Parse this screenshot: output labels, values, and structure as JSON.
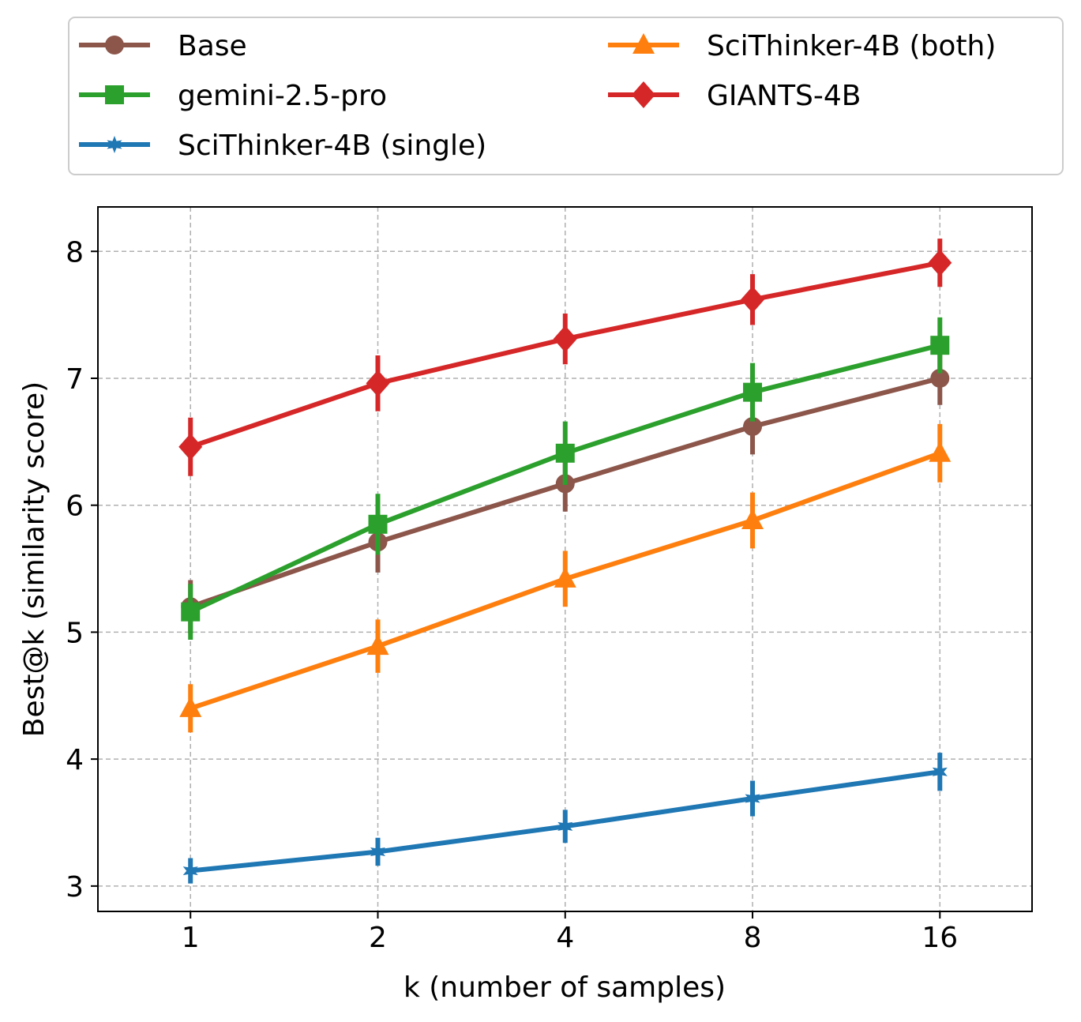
{
  "chart_data": {
    "type": "line",
    "title": "",
    "xlabel": "k (number of samples)",
    "ylabel": "Best@k (similarity score)",
    "x_scale": "log2",
    "x": [
      1,
      2,
      4,
      8,
      16
    ],
    "x_tick_labels": [
      "1",
      "2",
      "4",
      "8",
      "16"
    ],
    "xlim": [
      0.71,
      22.5
    ],
    "ylim": [
      2.8,
      8.35
    ],
    "y_ticks": [
      3,
      4,
      5,
      6,
      7,
      8
    ],
    "y_tick_labels": [
      "3",
      "4",
      "5",
      "6",
      "7",
      "8"
    ],
    "grid": true,
    "legend_position": "top, above plot, 2 columns",
    "series": [
      {
        "name": "Base",
        "color": "#8c564b",
        "marker": "circle",
        "values": [
          5.2,
          5.71,
          6.17,
          6.62,
          7.0
        ],
        "errors": [
          0.21,
          0.24,
          0.22,
          0.22,
          0.21
        ]
      },
      {
        "name": "gemini-2.5-pro",
        "color": "#2ca02c",
        "marker": "square",
        "values": [
          5.16,
          5.85,
          6.41,
          6.89,
          7.26
        ],
        "errors": [
          0.22,
          0.24,
          0.25,
          0.23,
          0.22
        ]
      },
      {
        "name": "SciThinker-4B (single)",
        "color": "#1f77b4",
        "marker": "star",
        "values": [
          3.12,
          3.27,
          3.47,
          3.69,
          3.9
        ],
        "errors": [
          0.1,
          0.11,
          0.13,
          0.14,
          0.15
        ]
      },
      {
        "name": "SciThinker-4B (both)",
        "color": "#ff7f0e",
        "marker": "triangle",
        "values": [
          4.4,
          4.89,
          5.42,
          5.88,
          6.41
        ],
        "errors": [
          0.19,
          0.21,
          0.22,
          0.22,
          0.23
        ]
      },
      {
        "name": "GIANTS-4B",
        "color": "#d62728",
        "marker": "diamond",
        "values": [
          6.46,
          6.96,
          7.31,
          7.62,
          7.91
        ],
        "errors": [
          0.23,
          0.22,
          0.2,
          0.2,
          0.19
        ]
      }
    ]
  }
}
